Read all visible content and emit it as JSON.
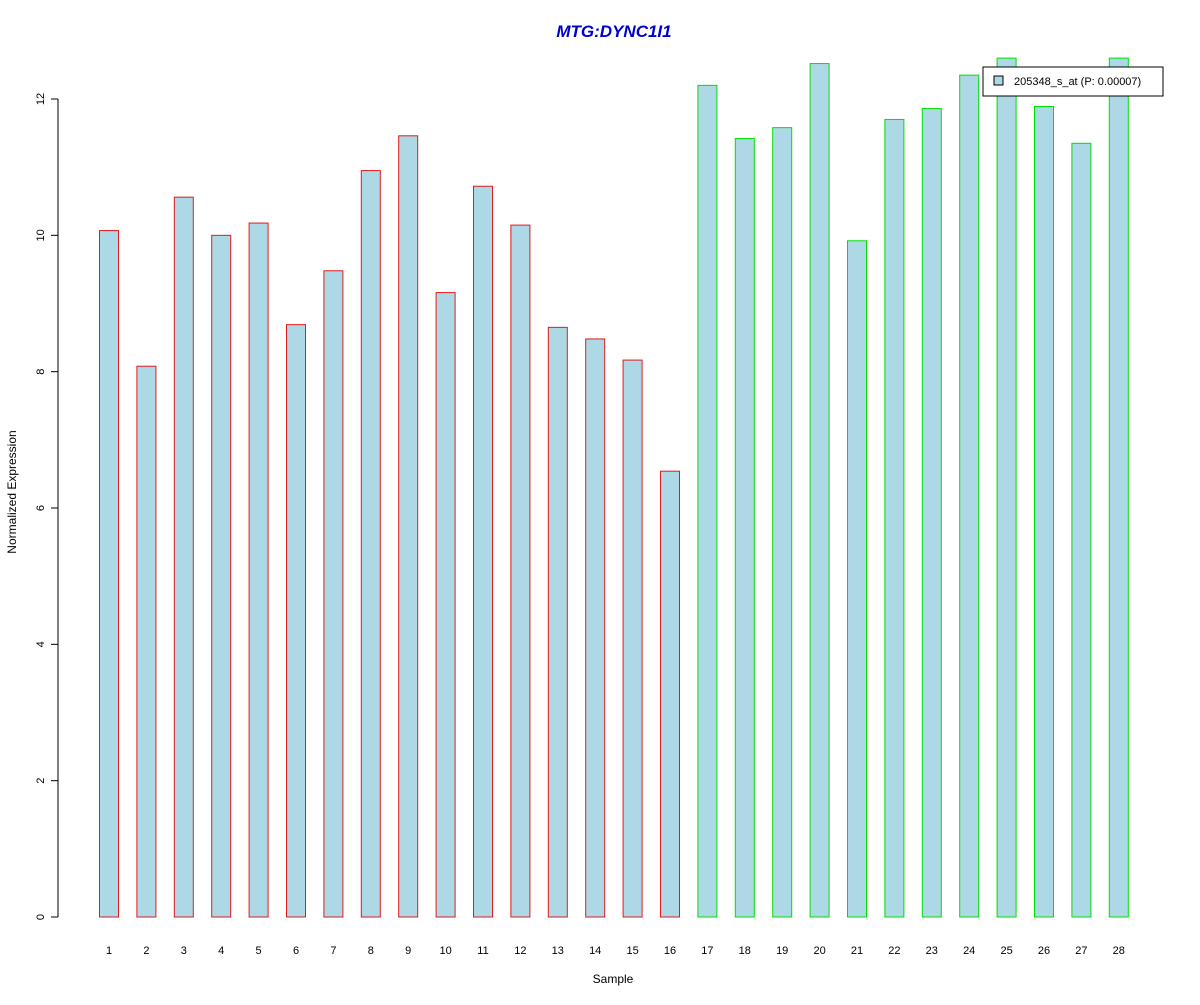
{
  "chart_data": {
    "type": "bar",
    "title": "MTG:DYNC1I1",
    "xlabel": "Sample",
    "ylabel": "Normalized Expression",
    "categories": [
      "1",
      "2",
      "3",
      "4",
      "5",
      "6",
      "7",
      "8",
      "9",
      "10",
      "11",
      "12",
      "13",
      "14",
      "15",
      "16",
      "17",
      "18",
      "19",
      "20",
      "21",
      "22",
      "23",
      "24",
      "25",
      "26",
      "27",
      "28"
    ],
    "series": [
      {
        "name": "205348_s_at (P: 0.00007)",
        "values": [
          10.07,
          8.08,
          10.56,
          10.0,
          10.18,
          8.69,
          9.48,
          10.95,
          11.46,
          9.16,
          10.72,
          10.15,
          8.65,
          8.48,
          8.17,
          6.54,
          12.2,
          11.42,
          11.58,
          12.52,
          9.92,
          11.7,
          11.86,
          12.35,
          12.6,
          11.89,
          11.35,
          12.6
        ]
      }
    ],
    "group_outline_colors": [
      "#e31a1c",
      "#e31a1c",
      "#e31a1c",
      "#e31a1c",
      "#e31a1c",
      "#e31a1c",
      "#e31a1c",
      "#e31a1c",
      "#e31a1c",
      "#e31a1c",
      "#e31a1c",
      "#e31a1c",
      "#e31a1c",
      "#e31a1c",
      "#e31a1c",
      "#e31a1c",
      "#00e000",
      "#00e000",
      "#00e000",
      "#00e000",
      "#00e000",
      "#00e000",
      "#00e000",
      "#00e000",
      "#00e000",
      "#00e000",
      "#00e000",
      "#00e000"
    ],
    "y_ticks": [
      "0",
      "2",
      "4",
      "6",
      "8",
      "10",
      "12"
    ],
    "ylim": [
      0,
      12.6
    ],
    "grid": false,
    "legend_position": "top-right",
    "colors": {
      "bar_fill": "#add8e6",
      "title": "#0000cc",
      "axis": "#000000"
    }
  }
}
